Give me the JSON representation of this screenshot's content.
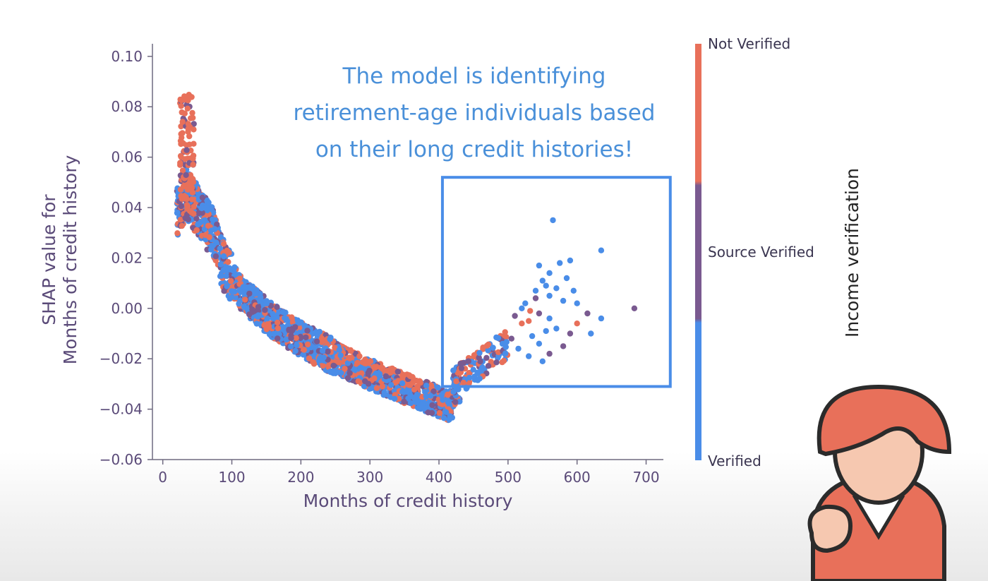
{
  "chart_data": {
    "type": "scatter",
    "xlabel": "Months of credit history",
    "ylabel_lines": [
      "SHAP value for",
      "Months of credit history"
    ],
    "xlim": [
      -15,
      725
    ],
    "ylim": [
      -0.06,
      0.105
    ],
    "xticks": [
      0,
      100,
      200,
      300,
      400,
      500,
      600,
      700
    ],
    "yticks": [
      -0.06,
      -0.04,
      -0.02,
      0.0,
      0.02,
      0.04,
      0.06,
      0.08,
      0.1
    ],
    "ytick_labels": [
      "−0.06",
      "−0.04",
      "−0.02",
      "0.00",
      "0.02",
      "0.04",
      "0.06",
      "0.08",
      "0.10"
    ],
    "colorbar": {
      "title": "Income verification",
      "labels": [
        "Not Verified",
        "Source Verified",
        "Verified"
      ],
      "colors": [
        "#e8705a",
        "#7a5a90",
        "#4a8de8"
      ]
    },
    "annotation_lines": [
      "The model is identifying",
      "retirement-age individuals based",
      "on their long credit histories!"
    ],
    "highlight_box": {
      "x": [
        405,
        735
      ],
      "y": [
        -0.031,
        0.052
      ],
      "color": "#4a8de8"
    },
    "series_colors": {
      "Not Verified": "#e8705a",
      "Source Verified": "#7a5a90",
      "Verified": "#4a8de8"
    },
    "sparse_points": [
      {
        "x": 565,
        "y": 0.035,
        "c": "Verified"
      },
      {
        "x": 635,
        "y": 0.023,
        "c": "Verified"
      },
      {
        "x": 590,
        "y": 0.019,
        "c": "Verified"
      },
      {
        "x": 575,
        "y": 0.018,
        "c": "Verified"
      },
      {
        "x": 545,
        "y": 0.017,
        "c": "Verified"
      },
      {
        "x": 560,
        "y": 0.014,
        "c": "Verified"
      },
      {
        "x": 585,
        "y": 0.012,
        "c": "Verified"
      },
      {
        "x": 550,
        "y": 0.011,
        "c": "Verified"
      },
      {
        "x": 555,
        "y": 0.009,
        "c": "Verified"
      },
      {
        "x": 570,
        "y": 0.008,
        "c": "Verified"
      },
      {
        "x": 540,
        "y": 0.007,
        "c": "Verified"
      },
      {
        "x": 595,
        "y": 0.007,
        "c": "Verified"
      },
      {
        "x": 560,
        "y": 0.005,
        "c": "Verified"
      },
      {
        "x": 540,
        "y": 0.004,
        "c": "Source Verified"
      },
      {
        "x": 580,
        "y": 0.003,
        "c": "Verified"
      },
      {
        "x": 525,
        "y": 0.002,
        "c": "Verified"
      },
      {
        "x": 600,
        "y": 0.002,
        "c": "Verified"
      },
      {
        "x": 520,
        "y": 0.0,
        "c": "Verified"
      },
      {
        "x": 532,
        "y": -0.001,
        "c": "Not Verified"
      },
      {
        "x": 545,
        "y": -0.002,
        "c": "Source Verified"
      },
      {
        "x": 615,
        "y": -0.002,
        "c": "Source Verified"
      },
      {
        "x": 635,
        "y": -0.004,
        "c": "Verified"
      },
      {
        "x": 560,
        "y": -0.004,
        "c": "Verified"
      },
      {
        "x": 510,
        "y": -0.003,
        "c": "Source Verified"
      },
      {
        "x": 530,
        "y": -0.005,
        "c": "Not Verified"
      },
      {
        "x": 520,
        "y": -0.006,
        "c": "Not Verified"
      },
      {
        "x": 600,
        "y": -0.006,
        "c": "Not Verified"
      },
      {
        "x": 570,
        "y": -0.008,
        "c": "Verified"
      },
      {
        "x": 555,
        "y": -0.009,
        "c": "Verified"
      },
      {
        "x": 590,
        "y": -0.01,
        "c": "Source Verified"
      },
      {
        "x": 620,
        "y": -0.01,
        "c": "Verified"
      },
      {
        "x": 535,
        "y": -0.011,
        "c": "Verified"
      },
      {
        "x": 505,
        "y": -0.012,
        "c": "Source Verified"
      },
      {
        "x": 545,
        "y": -0.014,
        "c": "Verified"
      },
      {
        "x": 580,
        "y": -0.015,
        "c": "Source Verified"
      },
      {
        "x": 515,
        "y": -0.016,
        "c": "Verified"
      },
      {
        "x": 560,
        "y": -0.018,
        "c": "Source Verified"
      },
      {
        "x": 530,
        "y": -0.019,
        "c": "Verified"
      },
      {
        "x": 550,
        "y": -0.021,
        "c": "Verified"
      },
      {
        "x": 683,
        "y": 0.0,
        "c": "Source Verified"
      }
    ]
  }
}
